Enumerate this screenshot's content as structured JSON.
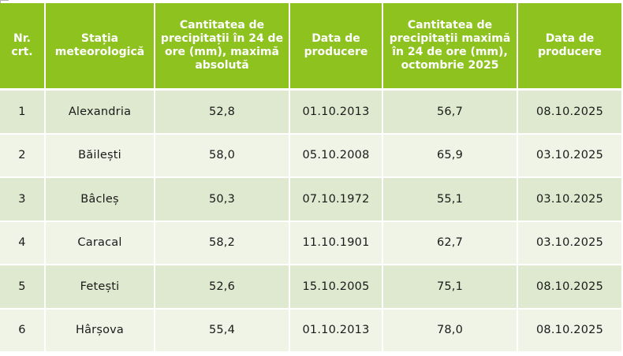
{
  "table": {
    "headers": [
      "Nr. crt.",
      "Stația meteorologică",
      "Cantitatea de precipitații în 24 de ore (mm), maximă absolută",
      "Data de producere",
      "Cantitatea de precipitații maximă în 24 de ore (mm), octombrie 2025",
      "Data de producere"
    ],
    "rows": [
      [
        "1",
        "Alexandria",
        "52,8",
        "01.10.2013",
        "56,7",
        "08.10.2025"
      ],
      [
        "2",
        "Băilești",
        "58,0",
        "05.10.2008",
        "65,9",
        "03.10.2025"
      ],
      [
        "3",
        "Bâcleș",
        "50,3",
        "07.10.1972",
        "55,1",
        "03.10.2025"
      ],
      [
        "4",
        "Caracal",
        "58,2",
        "11.10.1901",
        "62,7",
        "03.10.2025"
      ],
      [
        "5",
        "Fetești",
        "52,6",
        "15.10.2005",
        "75,1",
        "08.10.2025"
      ],
      [
        "6",
        "Hârșova",
        "55,4",
        "01.10.2013",
        "78,0",
        "08.10.2025"
      ]
    ]
  },
  "colors": {
    "header_bg": "#8dc21f",
    "row_odd_bg": "#dfe9cf",
    "row_even_bg": "#eff4e7"
  }
}
